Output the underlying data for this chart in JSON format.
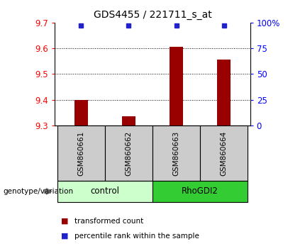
{
  "title": "GDS4455 / 221711_s_at",
  "samples": [
    "GSM860661",
    "GSM860662",
    "GSM860663",
    "GSM860664"
  ],
  "groups": [
    "control",
    "control",
    "RhoGDI2",
    "RhoGDI2"
  ],
  "transformed_counts": [
    9.4,
    9.335,
    9.605,
    9.555
  ],
  "percentile_ranks": [
    97,
    97,
    97,
    97
  ],
  "y_min": 9.3,
  "y_max": 9.7,
  "y_ticks": [
    9.3,
    9.4,
    9.5,
    9.6,
    9.7
  ],
  "y2_ticks": [
    0,
    25,
    50,
    75,
    100
  ],
  "y2_labels": [
    "0",
    "25",
    "50",
    "75",
    "100%"
  ],
  "bar_color": "#990000",
  "dot_color": "#2222cc",
  "control_color": "#ccffcc",
  "rhodgi2_color": "#33cc33",
  "label_bg_color": "#cccccc",
  "legend_bar_label": "transformed count",
  "legend_dot_label": "percentile rank within the sample",
  "group_label": "genotype/variation"
}
